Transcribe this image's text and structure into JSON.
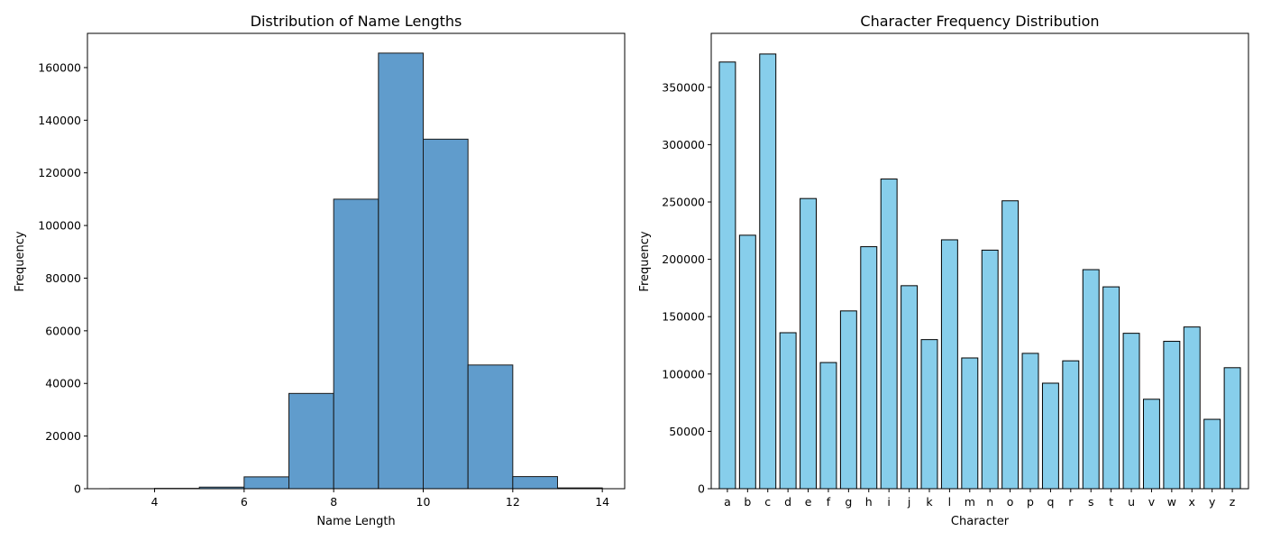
{
  "chart_data": [
    {
      "type": "bar",
      "subtype": "histogram",
      "title": "Distribution of Name Lengths",
      "xlabel": "Name Length",
      "ylabel": "Frequency",
      "xlim": [
        2.5,
        14.5
      ],
      "ylim": [
        0,
        173000
      ],
      "xticks": [
        "4",
        "6",
        "8",
        "10",
        "12",
        "14"
      ],
      "yticks": [
        "0",
        "20000",
        "40000",
        "60000",
        "80000",
        "100000",
        "120000",
        "140000",
        "160000"
      ],
      "bins": [
        {
          "x0": 3,
          "x1": 4,
          "value": 30
        },
        {
          "x0": 4,
          "x1": 5,
          "value": 120
        },
        {
          "x0": 5,
          "x1": 6,
          "value": 600
        },
        {
          "x0": 6,
          "x1": 7,
          "value": 4500
        },
        {
          "x0": 7,
          "x1": 8,
          "value": 36200
        },
        {
          "x0": 8,
          "x1": 9,
          "value": 110000
        },
        {
          "x0": 9,
          "x1": 10,
          "value": 165500
        },
        {
          "x0": 10,
          "x1": 11,
          "value": 132800
        },
        {
          "x0": 11,
          "x1": 12,
          "value": 47000
        },
        {
          "x0": 12,
          "x1": 13,
          "value": 4600
        },
        {
          "x0": 13,
          "x1": 14,
          "value": 300
        }
      ],
      "color": "#4f91c6",
      "edgecolor": "#1a1a1a",
      "grid": false
    },
    {
      "type": "bar",
      "title": "Character Frequency Distribution",
      "xlabel": "Character",
      "ylabel": "Frequency",
      "ylim": [
        0,
        397000
      ],
      "yticks": [
        "0",
        "50000",
        "100000",
        "150000",
        "200000",
        "250000",
        "300000",
        "350000"
      ],
      "categories": [
        "a",
        "b",
        "c",
        "d",
        "e",
        "f",
        "g",
        "h",
        "i",
        "j",
        "k",
        "l",
        "m",
        "n",
        "o",
        "p",
        "q",
        "r",
        "s",
        "t",
        "u",
        "v",
        "w",
        "x",
        "y",
        "z"
      ],
      "values": [
        372000,
        221000,
        379000,
        136000,
        253000,
        110000,
        155000,
        211000,
        270000,
        177000,
        130000,
        217000,
        114000,
        208000,
        251000,
        118000,
        92000,
        111500,
        191000,
        176000,
        135500,
        78000,
        128500,
        141000,
        60500,
        105500
      ],
      "color": "#87ceeb",
      "edgecolor": "#000000",
      "grid": false
    }
  ]
}
